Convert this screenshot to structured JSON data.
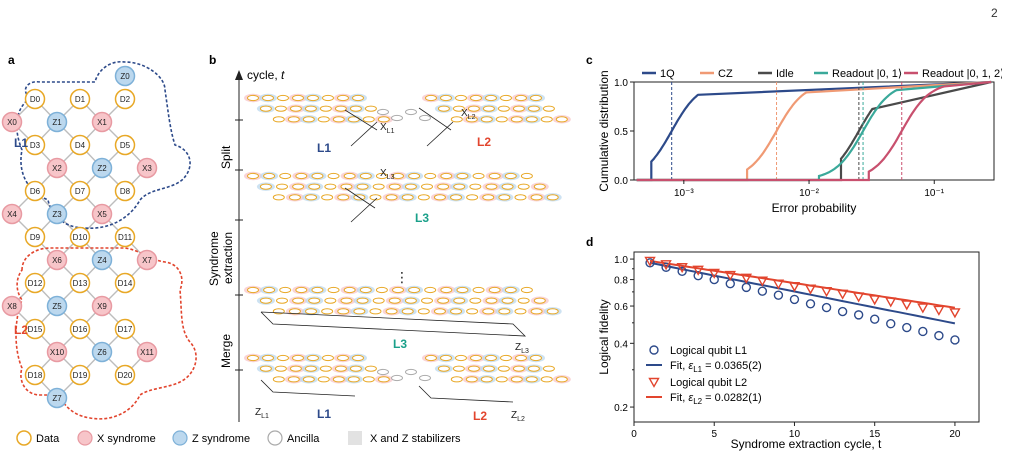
{
  "page_number": "2",
  "panel_labels": {
    "a": "a",
    "b": "b",
    "c": "c",
    "d": "d"
  },
  "panel_a": {
    "qubits": [
      {
        "label": "Z0",
        "type": "z"
      },
      {
        "label": "D0",
        "type": "data"
      },
      {
        "label": "D1",
        "type": "data"
      },
      {
        "label": "D2",
        "type": "data"
      },
      {
        "label": "X0",
        "type": "x"
      },
      {
        "label": "Z1",
        "type": "z"
      },
      {
        "label": "X1",
        "type": "x"
      },
      {
        "label": "D3",
        "type": "data"
      },
      {
        "label": "D4",
        "type": "data"
      },
      {
        "label": "D5",
        "type": "data"
      },
      {
        "label": "X2",
        "type": "x"
      },
      {
        "label": "Z2",
        "type": "z"
      },
      {
        "label": "X3",
        "type": "x"
      },
      {
        "label": "D6",
        "type": "data"
      },
      {
        "label": "D7",
        "type": "data"
      },
      {
        "label": "D8",
        "type": "data"
      },
      {
        "label": "X4",
        "type": "x"
      },
      {
        "label": "Z3",
        "type": "z"
      },
      {
        "label": "X5",
        "type": "x"
      },
      {
        "label": "D9",
        "type": "data"
      },
      {
        "label": "D10",
        "type": "data"
      },
      {
        "label": "D11",
        "type": "data"
      },
      {
        "label": "X6",
        "type": "x"
      },
      {
        "label": "Z4",
        "type": "z"
      },
      {
        "label": "X7",
        "type": "x"
      },
      {
        "label": "D12",
        "type": "data"
      },
      {
        "label": "D13",
        "type": "data"
      },
      {
        "label": "D14",
        "type": "data"
      },
      {
        "label": "X8",
        "type": "x"
      },
      {
        "label": "Z5",
        "type": "z"
      },
      {
        "label": "X9",
        "type": "x"
      },
      {
        "label": "D15",
        "type": "data"
      },
      {
        "label": "D16",
        "type": "data"
      },
      {
        "label": "D17",
        "type": "data"
      },
      {
        "label": "X10",
        "type": "x"
      },
      {
        "label": "Z6",
        "type": "z"
      },
      {
        "label": "X11",
        "type": "x"
      },
      {
        "label": "D18",
        "type": "data"
      },
      {
        "label": "D19",
        "type": "data"
      },
      {
        "label": "D20",
        "type": "data"
      },
      {
        "label": "Z7",
        "type": "z"
      }
    ],
    "region_labels": {
      "l1": "L1",
      "l2": "L2"
    },
    "colors": {
      "data_stroke": "#e8a826",
      "x_fill": "#f7c5c9",
      "x_stroke": "#e89aa2",
      "z_fill": "#bcd8ee",
      "z_stroke": "#7eb1d8",
      "l1": "#2d4a8a",
      "l2": "#e2452e",
      "ancilla_stroke": "#aaaaaa"
    }
  },
  "legend": {
    "data": "Data",
    "x_syndrome": "X syndrome",
    "z_syndrome": "Z syndrome",
    "ancilla": "Ancilla",
    "stabilizers": "X and Z stabilizers"
  },
  "panel_b": {
    "axis_label": "cycle, ",
    "axis_var": "t",
    "phases": [
      "Split",
      "Syndrome extraction",
      "Merge"
    ],
    "phase_split": "Split",
    "phase_se_1": "Syndrome",
    "phase_se_2": "extraction",
    "phase_merge": "Merge",
    "labels": {
      "l1": "L1",
      "l2": "L2",
      "l3": "L3",
      "ellipsis": "⋮"
    },
    "ops": {
      "xl1": "X",
      "xl1_sub": "L1",
      "xl2": "X",
      "xl2_sub": "L2",
      "xl3": "X",
      "xl3_sub": "L3",
      "zl3": "Z",
      "zl3_sub": "L3",
      "zl1": "Z",
      "zl1_sub": "L1",
      "zl2": "Z",
      "zl2_sub": "L2"
    }
  },
  "chart_data": [
    {
      "type": "line",
      "panel": "c",
      "xlabel": "Error probability",
      "ylabel": "Cumulative distribution",
      "xscale": "log",
      "xlim": [
        0.0004,
        0.3
      ],
      "ylim": [
        0,
        1
      ],
      "yticks": [
        "0.0",
        "0.5",
        "1.0"
      ],
      "xticks": [
        "10⁻³",
        "10⁻²",
        "10⁻¹"
      ],
      "legend_position": "top",
      "series": [
        {
          "name": "1Q",
          "color": "#2d4a8a",
          "median": 0.0008,
          "range": [
            0.00055,
            0.0013
          ]
        },
        {
          "name": "CZ",
          "color": "#f09a74",
          "median": 0.0055,
          "range": [
            0.0032,
            0.0095
          ]
        },
        {
          "name": "Idle",
          "color": "#4a4a4a",
          "median": 0.025,
          "range": [
            0.018,
            0.032
          ]
        },
        {
          "name": "Readout |0, 1⟩",
          "color": "#3aa99a",
          "median": 0.027,
          "range": [
            0.012,
            0.05
          ]
        },
        {
          "name": "Readout |0, 1, 2⟩",
          "color": "#c8506e",
          "median": 0.055,
          "range": [
            0.03,
            0.12
          ]
        }
      ]
    },
    {
      "type": "scatter",
      "panel": "d",
      "xlabel": "Syndrome extraction cycle, t",
      "ylabel": "Logical fidelity",
      "yscale": "log",
      "xlim": [
        0,
        21.5
      ],
      "ylim": [
        0.17,
        1.08
      ],
      "xticks": [
        0,
        5,
        10,
        15,
        20
      ],
      "yticks": [
        "0.2",
        "0.4",
        "0.6",
        "0.8",
        "1.0"
      ],
      "x": [
        1,
        2,
        3,
        4,
        5,
        6,
        7,
        8,
        9,
        10,
        11,
        12,
        13,
        14,
        15,
        16,
        17,
        18,
        19,
        20
      ],
      "series": [
        {
          "name": "Logical qubit L1",
          "color": "#2d4a8a",
          "marker": "circle",
          "values": [
            0.96,
            0.915,
            0.875,
            0.835,
            0.8,
            0.765,
            0.735,
            0.705,
            0.675,
            0.645,
            0.615,
            0.59,
            0.565,
            0.545,
            0.52,
            0.495,
            0.475,
            0.455,
            0.435,
            0.415
          ]
        },
        {
          "name": "Fit, ε",
          "fit_sub": "L1",
          "fit_value": " = 0.0365(2)",
          "color": "#2d4a8a",
          "type": "fit",
          "rate": 0.0365
        },
        {
          "name": "Logical qubit L2",
          "color": "#e2452e",
          "marker": "triangle",
          "values": [
            0.98,
            0.945,
            0.915,
            0.89,
            0.86,
            0.84,
            0.815,
            0.79,
            0.765,
            0.745,
            0.725,
            0.705,
            0.685,
            0.665,
            0.645,
            0.63,
            0.61,
            0.59,
            0.575,
            0.56
          ]
        },
        {
          "name": "Fit, ε",
          "fit_sub": "L2",
          "fit_value": " = 0.0282(1)",
          "color": "#e2452e",
          "type": "fit",
          "rate": 0.0282
        }
      ]
    }
  ]
}
